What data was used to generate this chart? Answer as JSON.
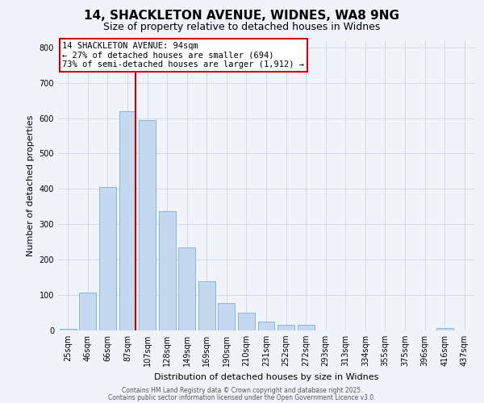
{
  "title": "14, SHACKLETON AVENUE, WIDNES, WA8 9NG",
  "subtitle": "Size of property relative to detached houses in Widnes",
  "xlabel": "Distribution of detached houses by size in Widnes",
  "ylabel": "Number of detached properties",
  "categories": [
    "25sqm",
    "46sqm",
    "66sqm",
    "87sqm",
    "107sqm",
    "128sqm",
    "149sqm",
    "169sqm",
    "190sqm",
    "210sqm",
    "231sqm",
    "252sqm",
    "272sqm",
    "293sqm",
    "313sqm",
    "334sqm",
    "355sqm",
    "375sqm",
    "396sqm",
    "416sqm",
    "437sqm"
  ],
  "bar_heights": [
    5,
    108,
    405,
    620,
    595,
    338,
    235,
    138,
    78,
    50,
    25,
    15,
    15,
    0,
    0,
    0,
    0,
    0,
    0,
    7,
    0
  ],
  "bar_color": "#c5d8f0",
  "bar_edge_color": "#7bafd4",
  "vline_color": "#cc0000",
  "annotation_title": "14 SHACKLETON AVENUE: 94sqm",
  "annotation_line1": "← 27% of detached houses are smaller (694)",
  "annotation_line2": "73% of semi-detached houses are larger (1,912) →",
  "annotation_box_edge": "#cc0000",
  "ylim": [
    0,
    820
  ],
  "yticks": [
    0,
    100,
    200,
    300,
    400,
    500,
    600,
    700,
    800
  ],
  "footer1": "Contains HM Land Registry data © Crown copyright and database right 2025.",
  "footer2": "Contains public sector information licensed under the Open Government Licence v3.0.",
  "bg_color": "#f0f4fa",
  "plot_bg_color": "#f0f4fa",
  "grid_color": "#c8d4e8",
  "title_fontsize": 11,
  "subtitle_fontsize": 9,
  "tick_fontsize": 7,
  "ylabel_fontsize": 8,
  "xlabel_fontsize": 8,
  "annotation_fontsize": 7.5,
  "footer_fontsize": 5.5
}
